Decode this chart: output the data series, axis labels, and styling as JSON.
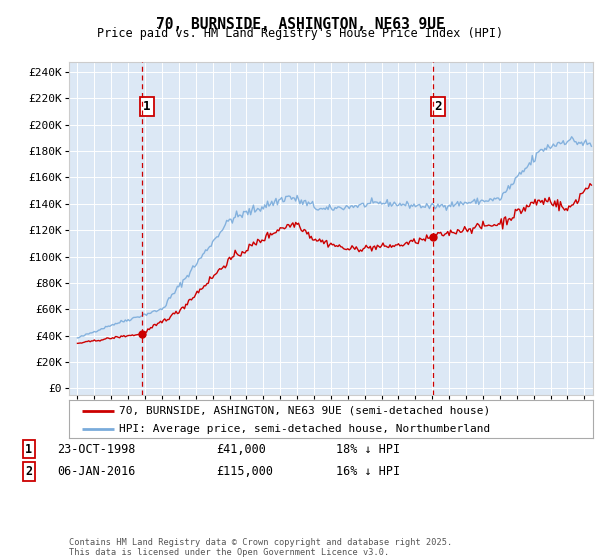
{
  "title": "70, BURNSIDE, ASHINGTON, NE63 9UE",
  "subtitle": "Price paid vs. HM Land Registry's House Price Index (HPI)",
  "legend_line1": "70, BURNSIDE, ASHINGTON, NE63 9UE (semi-detached house)",
  "legend_line2": "HPI: Average price, semi-detached house, Northumberland",
  "annotation1_date": "23-OCT-1998",
  "annotation1_price": "£41,000",
  "annotation1_hpi": "18% ↓ HPI",
  "annotation1_year": 1998.81,
  "annotation1_value": 41000,
  "annotation2_date": "06-JAN-2016",
  "annotation2_price": "£115,000",
  "annotation2_hpi": "16% ↓ HPI",
  "annotation2_year": 2016.02,
  "annotation2_value": 115000,
  "price_color": "#cc0000",
  "hpi_color": "#7aabdb",
  "vline_color": "#cc0000",
  "yticks": [
    0,
    20000,
    40000,
    60000,
    80000,
    100000,
    120000,
    140000,
    160000,
    180000,
    200000,
    220000,
    240000
  ],
  "ytick_labels": [
    "£0",
    "£20K",
    "£40K",
    "£60K",
    "£80K",
    "£100K",
    "£120K",
    "£140K",
    "£160K",
    "£180K",
    "£200K",
    "£220K",
    "£240K"
  ],
  "xlim_lo": 1994.5,
  "xlim_hi": 2025.5,
  "ylim_lo": -5000,
  "ylim_hi": 248000,
  "footer": "Contains HM Land Registry data © Crown copyright and database right 2025.\nThis data is licensed under the Open Government Licence v3.0.",
  "background_color": "#ffffff",
  "plot_bg_color": "#dce8f5"
}
